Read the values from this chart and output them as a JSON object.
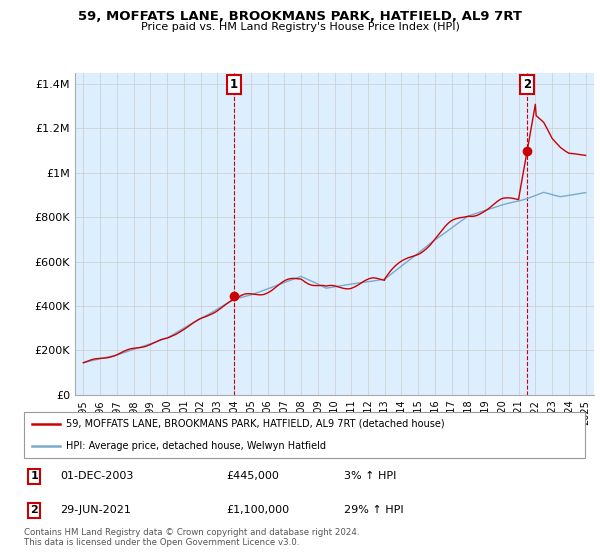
{
  "title": "59, MOFFATS LANE, BROOKMANS PARK, HATFIELD, AL9 7RT",
  "subtitle": "Price paid vs. HM Land Registry's House Price Index (HPI)",
  "red_label": "59, MOFFATS LANE, BROOKMANS PARK, HATFIELD, AL9 7RT (detached house)",
  "blue_label": "HPI: Average price, detached house, Welwyn Hatfield",
  "footnote": "Contains HM Land Registry data © Crown copyright and database right 2024.\nThis data is licensed under the Open Government Licence v3.0.",
  "point1_date": "01-DEC-2003",
  "point1_price": "£445,000",
  "point1_hpi": "3% ↑ HPI",
  "point1_year": 2004.0,
  "point1_value": 445000,
  "point2_date": "29-JUN-2021",
  "point2_price": "£1,100,000",
  "point2_hpi": "29% ↑ HPI",
  "point2_year": 2021.5,
  "point2_value": 1100000,
  "ylim_min": 0,
  "ylim_max": 1450000,
  "yticks": [
    0,
    200000,
    400000,
    600000,
    800000,
    1000000,
    1200000,
    1400000
  ],
  "ytick_labels": [
    "£0",
    "£200K",
    "£400K",
    "£600K",
    "£800K",
    "£1M",
    "£1.2M",
    "£1.4M"
  ],
  "xlim_min": 1994.5,
  "xlim_max": 2025.5,
  "xticks": [
    1995,
    1996,
    1997,
    1998,
    1999,
    2000,
    2001,
    2002,
    2003,
    2004,
    2005,
    2006,
    2007,
    2008,
    2009,
    2010,
    2011,
    2012,
    2013,
    2014,
    2015,
    2016,
    2017,
    2018,
    2019,
    2020,
    2021,
    2022,
    2023,
    2024,
    2025
  ],
  "red_color": "#cc0000",
  "blue_color": "#7aaacc",
  "bg_fill_color": "#ddeeff",
  "dashed_color": "#cc0000",
  "background_color": "#ffffff",
  "grid_color": "#cccccc"
}
